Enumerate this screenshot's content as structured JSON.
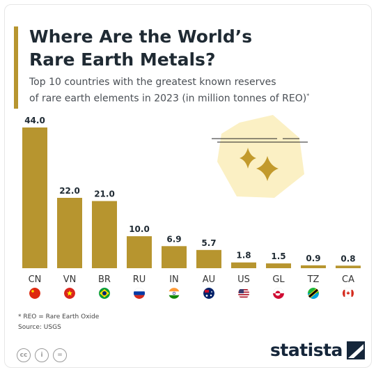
{
  "header": {
    "title_line1": "Where Are the World’s",
    "title_line2": "Rare Earth Metals?",
    "subtitle_line1": "Top 10 countries with the greatest known reserves",
    "subtitle_line2": "of rare earth elements in 2023 (in million tonnes of REO)",
    "subtitle_mark": "*"
  },
  "footnote": {
    "definition": "* REO = Rare Earth Oxide",
    "source": "Source: USGS"
  },
  "brand": {
    "name": "statista"
  },
  "license_icons": [
    "cc",
    "i",
    "="
  ],
  "colors": {
    "bar": "#b7952f",
    "title": "#1f2a33",
    "brand": "#15263a",
    "decoration": "#fbf0c4"
  },
  "chart_data": {
    "type": "bar",
    "categories": [
      "CN",
      "VN",
      "BR",
      "RU",
      "IN",
      "AU",
      "US",
      "GL",
      "TZ",
      "CA"
    ],
    "values": [
      44.0,
      22.0,
      21.0,
      10.0,
      6.9,
      5.7,
      1.8,
      1.5,
      0.9,
      0.8
    ],
    "value_labels": [
      "44.0",
      "22.0",
      "21.0",
      "10.0",
      "6.9",
      "5.7",
      "1.8",
      "1.5",
      "0.9",
      "0.8"
    ],
    "flags": [
      "flag-china",
      "flag-vietnam",
      "flag-brazil",
      "flag-russia",
      "flag-india",
      "flag-australia",
      "flag-usa",
      "flag-greenland",
      "flag-tanzania",
      "flag-canada"
    ],
    "title": "Where Are the World’s Rare Earth Metals?",
    "xlabel": "",
    "ylabel": "",
    "ylim": [
      0,
      44
    ],
    "grid": false,
    "legend": "none"
  }
}
